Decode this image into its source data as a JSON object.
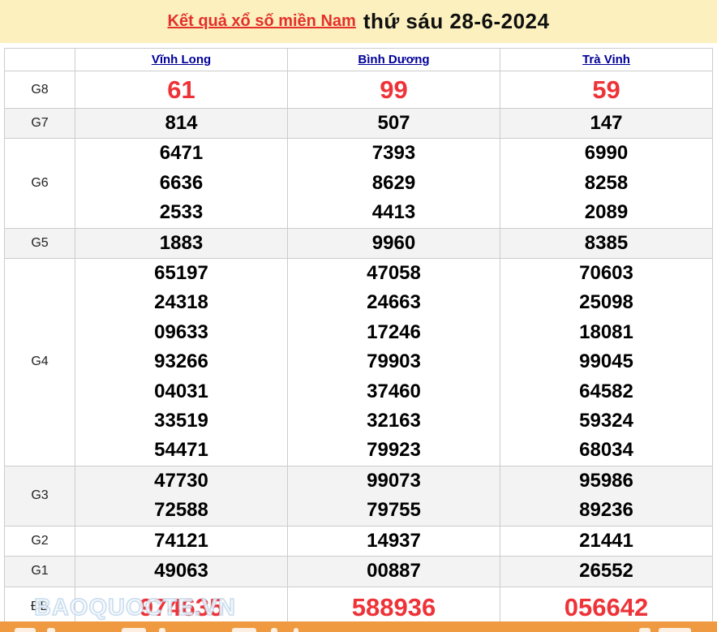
{
  "header": {
    "title_link": "Kết quả xổ số miền Nam",
    "title_rest": "thứ sáu 28-6-2024"
  },
  "table": {
    "columns": [
      "Vĩnh Long",
      "Bình Dương",
      "Trà Vinh"
    ],
    "rows": [
      {
        "label": "G8",
        "highlight": "g8",
        "shade": false,
        "values": [
          [
            "61"
          ],
          [
            "99"
          ],
          [
            "59"
          ]
        ]
      },
      {
        "label": "G7",
        "highlight": null,
        "shade": true,
        "values": [
          [
            "814"
          ],
          [
            "507"
          ],
          [
            "147"
          ]
        ]
      },
      {
        "label": "G6",
        "highlight": null,
        "shade": false,
        "values": [
          [
            "6471",
            "6636",
            "2533"
          ],
          [
            "7393",
            "8629",
            "4413"
          ],
          [
            "6990",
            "8258",
            "2089"
          ]
        ]
      },
      {
        "label": "G5",
        "highlight": null,
        "shade": true,
        "values": [
          [
            "1883"
          ],
          [
            "9960"
          ],
          [
            "8385"
          ]
        ]
      },
      {
        "label": "G4",
        "highlight": null,
        "shade": false,
        "values": [
          [
            "65197",
            "24318",
            "09633",
            "93266",
            "04031",
            "33519",
            "54471"
          ],
          [
            "47058",
            "24663",
            "17246",
            "79903",
            "37460",
            "32163",
            "79923"
          ],
          [
            "70603",
            "25098",
            "18081",
            "99045",
            "64582",
            "59324",
            "68034"
          ]
        ]
      },
      {
        "label": "G3",
        "highlight": null,
        "shade": true,
        "values": [
          [
            "47730",
            "72588"
          ],
          [
            "99073",
            "79755"
          ],
          [
            "95986",
            "89236"
          ]
        ]
      },
      {
        "label": "G2",
        "highlight": null,
        "shade": false,
        "values": [
          [
            "74121"
          ],
          [
            "14937"
          ],
          [
            "21441"
          ]
        ]
      },
      {
        "label": "G1",
        "highlight": null,
        "shade": true,
        "values": [
          [
            "49063"
          ],
          [
            "00887"
          ],
          [
            "26552"
          ]
        ]
      },
      {
        "label": "ĐB",
        "highlight": "db",
        "shade": false,
        "values": [
          [
            "974635"
          ],
          [
            "588936"
          ],
          [
            "056642"
          ]
        ]
      }
    ]
  },
  "watermark": "BAOQUOCTE.VN",
  "colors": {
    "banner_bg": "#fbf0be",
    "title_red": "#e4302b",
    "number_red": "#ee3338",
    "link_navy": "#000099",
    "row_shade": "#f3f3f3",
    "border": "#cccccc",
    "bottom_bar_orange": "#ef9a40"
  }
}
